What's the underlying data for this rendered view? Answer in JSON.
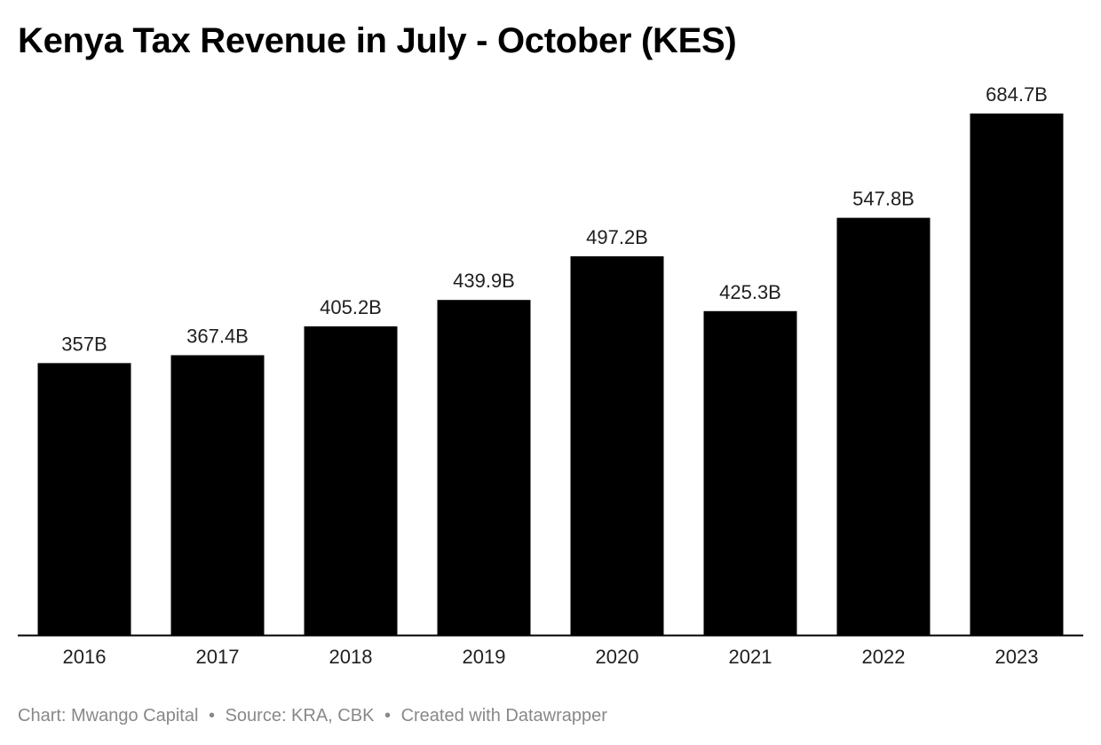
{
  "chart_data": {
    "type": "bar",
    "title": "Kenya Tax Revenue in July - October (KES)",
    "categories": [
      "2016",
      "2017",
      "2018",
      "2019",
      "2020",
      "2021",
      "2022",
      "2023"
    ],
    "values": [
      357,
      367.4,
      405.2,
      439.9,
      497.2,
      425.3,
      547.8,
      684.7
    ],
    "value_labels": [
      "357B",
      "367.4B",
      "405.2B",
      "439.9B",
      "497.2B",
      "425.3B",
      "547.8B",
      "684.7B"
    ],
    "xlabel": "",
    "ylabel": "",
    "ylim": [
      0,
      684.7
    ],
    "grid": false,
    "legend": "none",
    "bar_color": "#000000"
  },
  "footer": {
    "chart_credit": "Chart: Mwango Capital",
    "separator": "•",
    "source": "Source: KRA, CBK",
    "created_with": "Created with Datawrapper"
  },
  "colors": {
    "bar": "#000000",
    "text": "#1f1f1f",
    "footer_text": "#888888",
    "background": "#ffffff"
  }
}
